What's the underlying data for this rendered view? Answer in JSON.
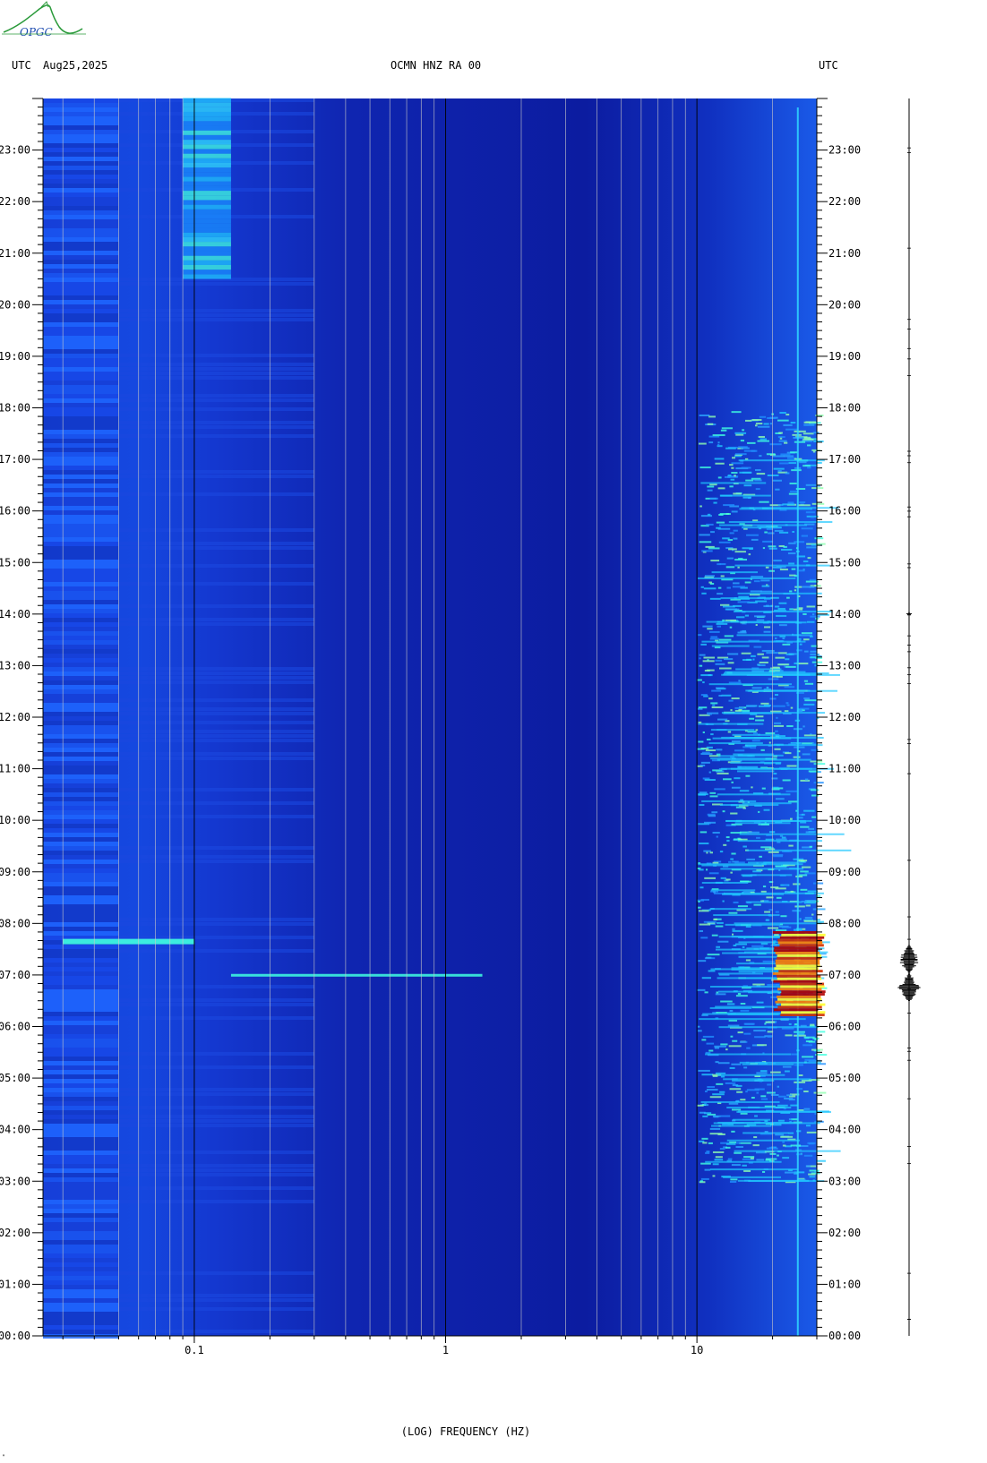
{
  "header": {
    "tz_left": "UTC",
    "date": "Aug25,2025",
    "station": "OCMN HNZ RA 00",
    "tz_right": "UTC"
  },
  "logo": {
    "text": "OPGC",
    "color": "#2a9a3a"
  },
  "footer": {
    "corner_mark": "\""
  },
  "chart_data": {
    "type": "heatmap",
    "title": "OCMN HNZ RA 00",
    "xlabel": "(LOG) FREQUENCY (HZ)",
    "xscale": "log",
    "xlim": [
      0.025,
      30
    ],
    "x_ticks": [
      {
        "value": 0.1,
        "label": "0.1"
      },
      {
        "value": 1,
        "label": "1"
      },
      {
        "value": 10,
        "label": "10"
      }
    ],
    "ylim_hours": [
      0,
      24
    ],
    "y_ticks": [
      "00:00",
      "01:00",
      "02:00",
      "03:00",
      "04:00",
      "05:00",
      "06:00",
      "07:00",
      "08:00",
      "09:00",
      "10:00",
      "11:00",
      "12:00",
      "13:00",
      "14:00",
      "15:00",
      "16:00",
      "17:00",
      "18:00",
      "19:00",
      "20:00",
      "21:00",
      "22:00",
      "23:00"
    ],
    "colormap": [
      "#0a0a90",
      "#1030d0",
      "#1f6fff",
      "#20c8ff",
      "#40ffe0",
      "#ffff30",
      "#ff8000",
      "#b00000"
    ],
    "background_color": "#0d1fa8",
    "features": [
      {
        "name": "low-frequency microseism band",
        "f_range": [
          0.09,
          0.14
        ],
        "hours": [
          20.5,
          24
        ]
      },
      {
        "name": "high-frequency cultural noise",
        "f_range": [
          10,
          30
        ],
        "hours": [
          3,
          18
        ]
      },
      {
        "name": "earthquake",
        "f_range": [
          20,
          30
        ],
        "hours": [
          6.2,
          7.8
        ]
      },
      {
        "name": "teleseismic surface wave",
        "f_range": [
          0.14,
          1.4
        ],
        "hours": [
          6.95,
          7.05
        ]
      }
    ],
    "seismogram_events_hours": [
      7.0,
      6.8,
      14.0
    ]
  }
}
